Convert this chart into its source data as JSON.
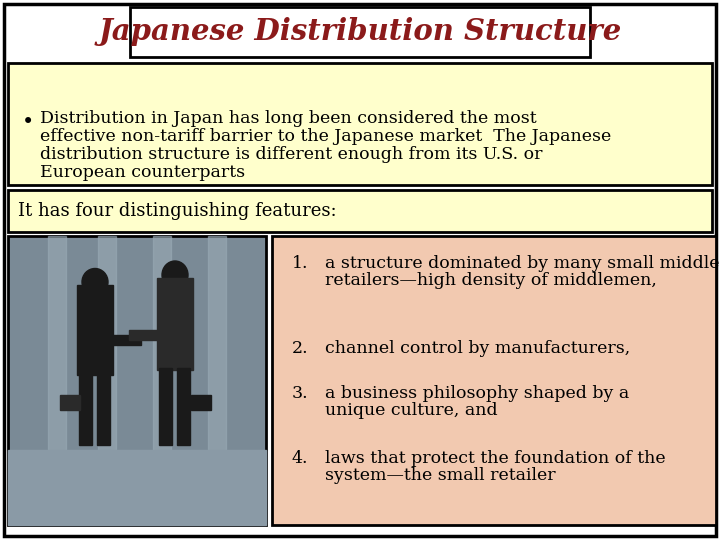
{
  "title": "Japanese Distribution Structure",
  "title_color": "#8B1A1A",
  "title_bg": "#FFFFFF",
  "title_border": "#000000",
  "bullet_text_lines": [
    "Distribution in Japan has long been considered the most",
    "effective non-tariff barrier to the Japanese market  The Japanese",
    "distribution structure is different enough from its U.S. or",
    "European counterparts"
  ],
  "feature_intro": "It has four distinguishing features:",
  "features": [
    [
      "1.",
      "a structure dominated by many small middlemen dealing with many small\nretailers—high density of middlemen,"
    ],
    [
      "2.",
      "channel control by manufacturers,"
    ],
    [
      "3.",
      "a business philosophy shaped by a\nunique culture, and"
    ],
    [
      "4.",
      "laws that protect the foundation of the\nsystem—the small retailer"
    ]
  ],
  "slide_bg": "#FFFFFF",
  "box1_bg": "#FFFFCC",
  "box2_bg": "#FFFFCC",
  "box3_bg": "#F2C9B0",
  "text_color": "#000000",
  "border_color": "#000000",
  "img_bg": "#7A8A96",
  "img_column_color": "#9AABB5",
  "img_ground_color": "#8A9AA6",
  "person_dark": "#1a1a1a",
  "person_dark2": "#2a2a2a",
  "font_size_title": 21,
  "font_size_body": 12.5,
  "font_size_features": 12.5,
  "font_size_intro": 13
}
